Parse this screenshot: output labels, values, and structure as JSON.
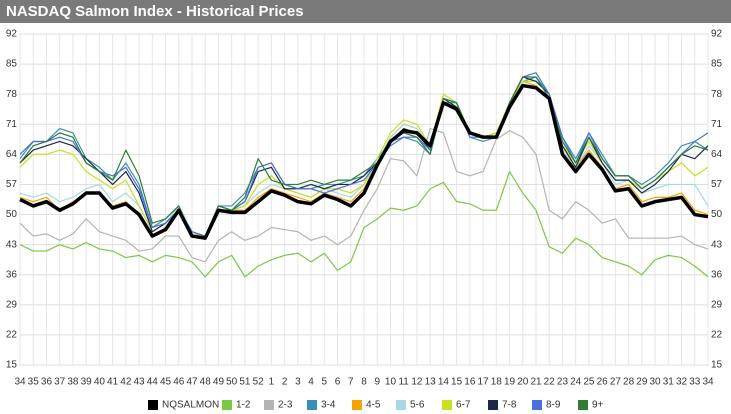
{
  "chart_data": {
    "type": "line",
    "title": "NASDAQ Salmon Index - Historical Prices",
    "categories": [
      "34",
      "35",
      "36",
      "37",
      "38",
      "39",
      "40",
      "41",
      "42",
      "43",
      "44",
      "45",
      "46",
      "47",
      "48",
      "49",
      "50",
      "51",
      "52",
      "1",
      "2",
      "3",
      "4",
      "5",
      "6",
      "7",
      "8",
      "9",
      "10",
      "11",
      "12",
      "13",
      "14",
      "15",
      "16",
      "17",
      "18",
      "19",
      "20",
      "21",
      "22",
      "23",
      "24",
      "25",
      "26",
      "27",
      "28",
      "29",
      "30",
      "31",
      "32",
      "33",
      "34"
    ],
    "ylim": [
      15,
      92
    ],
    "yticks": [
      15,
      22,
      29,
      36,
      43,
      50,
      57,
      64,
      71,
      78,
      85,
      92
    ],
    "y2lim": [
      15,
      92
    ],
    "y2ticks": [
      15,
      22,
      29,
      36,
      43,
      50,
      57,
      64,
      71,
      78,
      85,
      92
    ],
    "grid": true,
    "series": [
      {
        "name": "NQSALMON",
        "color": "#000000",
        "values": [
          53.5,
          52,
          53,
          51,
          52.5,
          55,
          55,
          51.5,
          52.5,
          50,
          45,
          46.5,
          51,
          45,
          44.5,
          51,
          50.5,
          50.5,
          53,
          55.5,
          54.5,
          53,
          52.5,
          54.5,
          53.5,
          52,
          55,
          61.5,
          67,
          69.5,
          69,
          66,
          76,
          74.5,
          69,
          68,
          68,
          75,
          80,
          79.5,
          77,
          64,
          60,
          64,
          60.5,
          55.5,
          56,
          52,
          53,
          53.5,
          54,
          50,
          49.5
        ]
      },
      {
        "name": "1-2",
        "color": "#7ac943",
        "values": [
          43,
          41.5,
          41.5,
          43,
          42,
          43.5,
          42,
          41.5,
          40,
          40.5,
          39,
          40.5,
          40,
          39,
          35.5,
          39,
          40.5,
          35.5,
          38,
          39.5,
          40.5,
          41,
          39,
          41,
          37,
          39,
          47,
          49,
          51.5,
          51,
          52,
          56,
          57.5,
          53,
          52.5,
          51,
          51,
          60,
          55,
          51,
          42.5,
          41,
          44.5,
          43,
          40,
          39,
          38,
          36,
          39.5,
          40.5,
          40,
          38,
          35.5
        ]
      },
      {
        "name": "2-3",
        "color": "#b3b3b3",
        "values": [
          48,
          45,
          45.5,
          44,
          45.5,
          49,
          46,
          45,
          44,
          41.5,
          42,
          45,
          45,
          40,
          39,
          44,
          46,
          44,
          45,
          47,
          46.5,
          46,
          44,
          45,
          43,
          45,
          51,
          56,
          63,
          62.5,
          59,
          70,
          69,
          60,
          59,
          60,
          67.5,
          69.5,
          68,
          64,
          51,
          49,
          53,
          51,
          48,
          49,
          44.5,
          44.5,
          44.5,
          44.5,
          45,
          43,
          42
        ]
      },
      {
        "name": "3-4",
        "color": "#3a8fb7",
        "values": [
          63,
          67,
          67,
          70,
          69,
          63,
          61,
          58,
          62,
          57,
          47,
          49,
          52,
          46,
          45,
          52,
          52,
          55,
          61,
          62,
          57,
          56,
          56,
          57,
          57,
          58,
          59,
          63,
          67,
          68,
          67,
          64,
          76,
          76,
          68,
          67,
          68,
          76,
          81,
          82,
          78,
          68,
          63,
          69,
          64,
          59,
          59,
          57,
          59,
          62,
          66,
          67,
          65
        ]
      },
      {
        "name": "4-5",
        "color": "#f0a500",
        "values": [
          54,
          53,
          54,
          51,
          53,
          55,
          55,
          52,
          53,
          50,
          45,
          47,
          51,
          46,
          44.5,
          51,
          51,
          51,
          54,
          56,
          55,
          54,
          53,
          55,
          54,
          53,
          56,
          62,
          68,
          71,
          70,
          66,
          77,
          75,
          69,
          68,
          69,
          76,
          81,
          80,
          77,
          64,
          61,
          65,
          61,
          56,
          57,
          53,
          54,
          54,
          55,
          51,
          50
        ]
      },
      {
        "name": "5-6",
        "color": "#a6d8e8",
        "values": [
          55,
          54,
          55,
          53,
          54,
          56,
          57,
          53,
          55,
          52,
          46,
          48,
          52,
          46,
          45,
          51,
          51,
          52,
          55,
          57,
          56,
          55,
          54,
          56,
          55,
          54,
          57,
          62,
          68,
          71,
          70,
          66,
          77,
          75,
          69,
          68,
          69,
          76,
          81,
          81,
          78,
          65,
          61,
          66,
          62,
          57,
          58,
          55,
          56,
          57,
          57,
          57,
          52
        ]
      },
      {
        "name": "6-7",
        "color": "#c8e020",
        "values": [
          61,
          64,
          64,
          65,
          64,
          60,
          58,
          56,
          58,
          52,
          46,
          48,
          51,
          46,
          45,
          51,
          51,
          52,
          57,
          59,
          56,
          55,
          54,
          56,
          56,
          55,
          57,
          63,
          69,
          72,
          71,
          66,
          78,
          76,
          69,
          68,
          69,
          76,
          81,
          81,
          78,
          66,
          62,
          67,
          62,
          58,
          58,
          56,
          58,
          60,
          62,
          59,
          61
        ]
      },
      {
        "name": "7-8",
        "color": "#1a2a44",
        "values": [
          62,
          65,
          66,
          67,
          66,
          63,
          60,
          57,
          60,
          55,
          46,
          48,
          51,
          45,
          45,
          51,
          51,
          53,
          60,
          61,
          56,
          56,
          57,
          56,
          57,
          57,
          59,
          62,
          67,
          70,
          69,
          65,
          77,
          75,
          69,
          68,
          68,
          76,
          82,
          81,
          78,
          66,
          61,
          68,
          62,
          58,
          58,
          55,
          57,
          60,
          64,
          63,
          66
        ]
      },
      {
        "name": "8-9",
        "color": "#4a6fe0",
        "values": [
          64,
          67,
          67,
          68,
          67,
          62,
          60,
          59,
          61,
          56,
          47,
          48,
          51,
          46,
          45,
          52,
          51,
          53,
          61,
          62,
          57,
          56,
          56,
          55,
          56,
          57,
          58,
          62,
          66,
          68,
          68,
          65,
          77,
          76,
          68,
          68,
          68,
          76,
          82,
          83,
          78,
          68,
          62,
          69,
          63,
          59,
          59,
          56,
          58,
          61,
          64,
          67,
          69
        ]
      },
      {
        "name": "9+",
        "color": "#2e7d32",
        "values": [
          62,
          66,
          67,
          69,
          68,
          62,
          60,
          58,
          65,
          59,
          48,
          49,
          52,
          45,
          45,
          52,
          51,
          54,
          63,
          58,
          57,
          57,
          58,
          57,
          58,
          58,
          60,
          62,
          67,
          69,
          68,
          64,
          77,
          76,
          69,
          68,
          68,
          76,
          82,
          82,
          77,
          67,
          62,
          68,
          63,
          59,
          59,
          56,
          58,
          61,
          64,
          66,
          65
        ]
      }
    ]
  }
}
